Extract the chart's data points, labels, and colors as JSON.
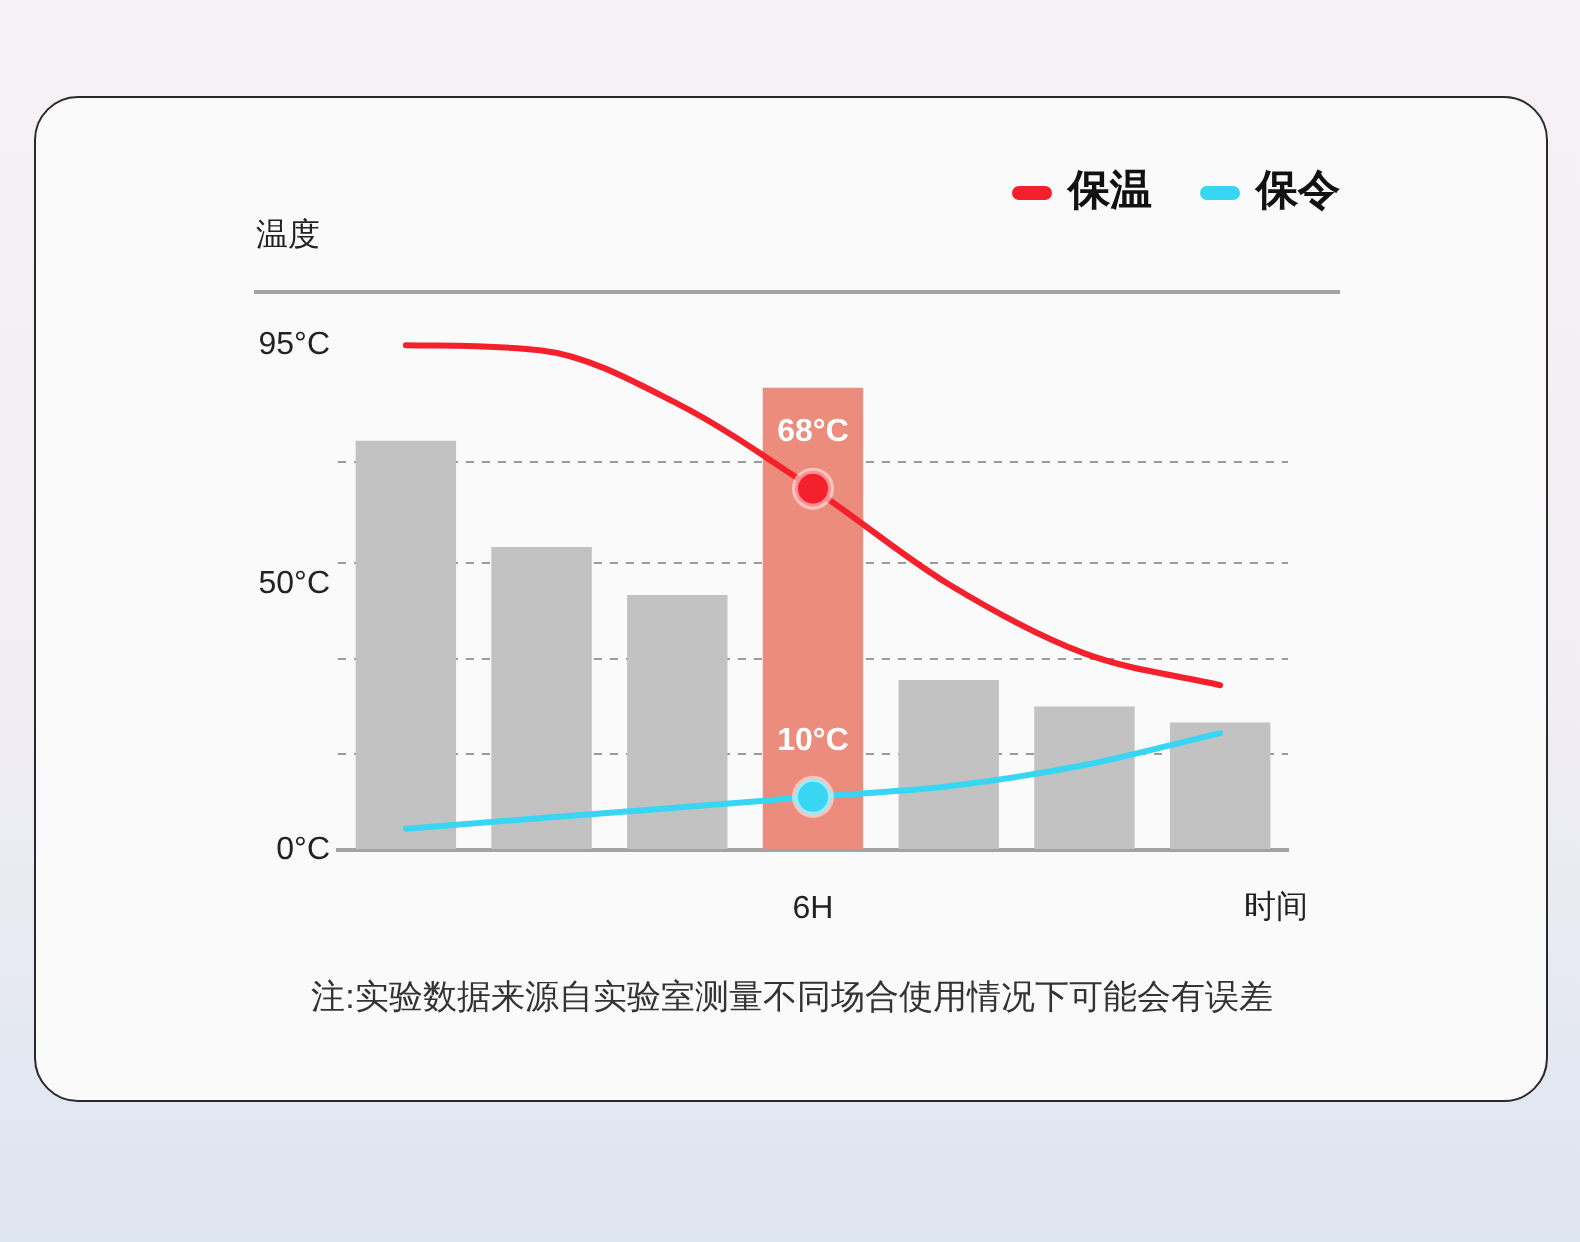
{
  "chart_data": {
    "type": "line",
    "ylabel": "温度",
    "xlabel": "时间",
    "categories": [
      null,
      null,
      null,
      "6H",
      null,
      null,
      null
    ],
    "series": [
      {
        "type": "bar",
        "colors": [
          "#c2c2c2",
          "#c2c2c2",
          "#c2c2c2",
          "#ec8c7c",
          "#c2c2c2",
          "#c2c2c2",
          "#c2c2c2"
        ],
        "values": [
          77,
          57,
          48,
          87,
          32,
          27,
          24
        ]
      },
      {
        "name": "保温",
        "color": "#f4202c",
        "values": [
          95,
          94,
          84,
          68,
          50,
          37,
          31
        ],
        "value_labels": [
          null,
          null,
          null,
          "68°C",
          null,
          null,
          null
        ]
      },
      {
        "name": "保令",
        "color": "#38d6f3",
        "values": [
          4,
          6,
          8,
          10,
          12,
          16,
          22
        ],
        "value_labels": [
          null,
          null,
          null,
          "10°C",
          null,
          null,
          null
        ]
      }
    ],
    "ylim": [
      0,
      105
    ],
    "yticks": [
      {
        "value": 0,
        "label": "0°C"
      },
      {
        "value": 18,
        "label": null
      },
      {
        "value": 36,
        "label": null
      },
      {
        "value": 50,
        "label": "50°C"
      },
      {
        "value": 54,
        "label": null
      },
      {
        "value": 73,
        "label": null
      },
      {
        "value": 95,
        "label": "95°C"
      }
    ],
    "grid": "y",
    "legend": "top right",
    "annotations": [
      "注:实验数据来源自实验室测量不同场合使用情况下可能会有误差"
    ]
  }
}
